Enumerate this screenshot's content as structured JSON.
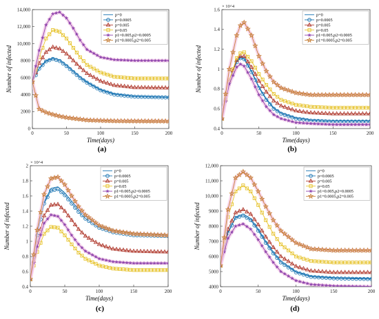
{
  "figure": {
    "colors": {
      "p0": "#1f77b4",
      "p00005": "#1f77b4",
      "p0005": "#b03a2e",
      "p005": "#e6c229",
      "combo1": "#8e44ad",
      "combo2": "#c8823b",
      "band": "#f5c6e6"
    }
  },
  "chart_data": [
    {
      "panel": "(a)",
      "type": "line",
      "xlabel": "Time(days)",
      "ylabel": "Number of infected",
      "xlim": [
        0,
        200
      ],
      "ylim": [
        0,
        14000
      ],
      "xticks": [
        0,
        50,
        100,
        150,
        200
      ],
      "yticks": [
        0,
        2000,
        4000,
        6000,
        8000,
        10000,
        12000,
        14000
      ],
      "ytick_labels": [
        "0",
        "2000",
        "4000",
        "6000",
        "8000",
        "10,000",
        "12,000",
        "14,000"
      ],
      "exponent": "",
      "legend_position": "top-right",
      "x": [
        0,
        10,
        20,
        30,
        40,
        50,
        60,
        70,
        80,
        100,
        120,
        150,
        200
      ],
      "series": [
        {
          "name": "p=0",
          "marker": "none",
          "color": "p0",
          "values": [
            5500,
            7100,
            8000,
            8300,
            8100,
            7500,
            6800,
            6100,
            5500,
            4600,
            4100,
            3800,
            3700
          ]
        },
        {
          "name": "p=0.0005",
          "marker": "circle",
          "color": "p00005",
          "values": [
            5500,
            7050,
            7900,
            8200,
            7950,
            7350,
            6650,
            5950,
            5400,
            4500,
            4000,
            3750,
            3650
          ]
        },
        {
          "name": "p=0.005",
          "marker": "triangle",
          "color": "p0005",
          "values": [
            5500,
            7700,
            9000,
            9600,
            9400,
            8800,
            8000,
            7200,
            6500,
            5600,
            5100,
            4850,
            4800
          ]
        },
        {
          "name": "p=0.05",
          "marker": "square",
          "color": "p005",
          "values": [
            5500,
            8400,
            10600,
            11600,
            11400,
            10600,
            9500,
            8400,
            7500,
            6600,
            6100,
            5900,
            5900
          ]
        },
        {
          "name": "p1=0.005,p2=0.0005",
          "marker": "star",
          "color": "combo1",
          "values": [
            5500,
            9200,
            12200,
            13500,
            13700,
            13000,
            11800,
            10400,
            9300,
            8400,
            8100,
            8000,
            8000
          ]
        },
        {
          "name": "p1=0.0005,p2=0.005",
          "marker": "hexstar",
          "color": "combo2",
          "values": [
            5500,
            2300,
            1900,
            1650,
            1450,
            1300,
            1200,
            1100,
            1000,
            950,
            900,
            880,
            870
          ]
        }
      ]
    },
    {
      "panel": "(b)",
      "type": "line",
      "xlabel": "Time(days)",
      "ylabel": "Number of infected",
      "xlim": [
        0,
        200
      ],
      "ylim": [
        0.4,
        1.6
      ],
      "xticks": [
        0,
        50,
        100,
        150,
        200
      ],
      "yticks": [
        0.4,
        0.6,
        0.8,
        1.0,
        1.2,
        1.4,
        1.6
      ],
      "ytick_labels": [
        "0.4",
        "0.6",
        "0.8",
        "1",
        "1.2",
        "1.4",
        "1.6"
      ],
      "exponent": "× 10^4",
      "legend_position": "top-right",
      "x": [
        0,
        10,
        20,
        25,
        30,
        40,
        50,
        60,
        70,
        80,
        100,
        120,
        150,
        200
      ],
      "series": [
        {
          "name": "p=0",
          "marker": "none",
          "color": "p0",
          "values": [
            0.5,
            0.88,
            1.08,
            1.12,
            1.11,
            0.98,
            0.82,
            0.7,
            0.61,
            0.56,
            0.51,
            0.49,
            0.48,
            0.48
          ]
        },
        {
          "name": "p=0.0005",
          "marker": "circle",
          "color": "p00005",
          "values": [
            0.5,
            0.87,
            1.07,
            1.11,
            1.1,
            0.97,
            0.81,
            0.69,
            0.6,
            0.55,
            0.5,
            0.48,
            0.47,
            0.47
          ]
        },
        {
          "name": "p=0.005",
          "marker": "triangle",
          "color": "p0005",
          "values": [
            0.5,
            0.88,
            1.09,
            1.13,
            1.13,
            1.02,
            0.88,
            0.77,
            0.68,
            0.63,
            0.58,
            0.56,
            0.55,
            0.55
          ]
        },
        {
          "name": "p=0.05",
          "marker": "square",
          "color": "p005",
          "values": [
            0.5,
            0.89,
            1.11,
            1.16,
            1.17,
            1.08,
            0.95,
            0.84,
            0.75,
            0.69,
            0.64,
            0.62,
            0.61,
            0.61
          ]
        },
        {
          "name": "p1=0.005,p2=0.0005",
          "marker": "star",
          "color": "combo1",
          "values": [
            0.5,
            0.85,
            1.02,
            1.05,
            1.03,
            0.9,
            0.74,
            0.62,
            0.54,
            0.5,
            0.46,
            0.45,
            0.44,
            0.44
          ]
        },
        {
          "name": "p1=0.0005,p2=0.005",
          "marker": "hexstar",
          "color": "combo2",
          "values": [
            0.5,
            1.0,
            1.34,
            1.44,
            1.47,
            1.34,
            1.13,
            0.98,
            0.87,
            0.81,
            0.76,
            0.74,
            0.74,
            0.74
          ]
        }
      ]
    },
    {
      "panel": "(c)",
      "type": "line",
      "xlabel": "Time(days)",
      "ylabel": "Number of infected",
      "xlim": [
        0,
        200
      ],
      "ylim": [
        0.4,
        2.0
      ],
      "xticks": [
        0,
        50,
        100,
        150,
        200
      ],
      "yticks": [
        0.4,
        0.6,
        0.8,
        1.0,
        1.2,
        1.4,
        1.6,
        1.8,
        2.0
      ],
      "ytick_labels": [
        "0.4",
        "0.6",
        "0.8",
        "1",
        "1.2",
        "1.4",
        "1.6",
        "1.8",
        "2"
      ],
      "exponent": "× 10^4",
      "legend_position": "top-right",
      "x": [
        0,
        10,
        20,
        30,
        40,
        50,
        60,
        70,
        80,
        100,
        120,
        150,
        200
      ],
      "series": [
        {
          "name": "p=0",
          "marker": "none",
          "color": "p0",
          "values": [
            0.5,
            1.1,
            1.52,
            1.7,
            1.72,
            1.64,
            1.53,
            1.42,
            1.33,
            1.21,
            1.15,
            1.11,
            1.09
          ]
        },
        {
          "name": "p=0.0005",
          "marker": "circle",
          "color": "p00005",
          "values": [
            0.5,
            1.08,
            1.5,
            1.67,
            1.69,
            1.61,
            1.5,
            1.39,
            1.3,
            1.18,
            1.12,
            1.08,
            1.07
          ]
        },
        {
          "name": "p=0.005",
          "marker": "triangle",
          "color": "p0005",
          "values": [
            0.5,
            0.98,
            1.34,
            1.48,
            1.49,
            1.4,
            1.28,
            1.16,
            1.07,
            0.96,
            0.9,
            0.87,
            0.86
          ]
        },
        {
          "name": "p=0.05",
          "marker": "square",
          "color": "p005",
          "values": [
            0.5,
            0.86,
            1.1,
            1.19,
            1.18,
            1.08,
            0.96,
            0.85,
            0.77,
            0.68,
            0.64,
            0.62,
            0.62
          ]
        },
        {
          "name": "p1=0.005,p2=0.0005",
          "marker": "star",
          "color": "combo1",
          "values": [
            0.5,
            0.93,
            1.24,
            1.35,
            1.33,
            1.22,
            1.08,
            0.96,
            0.87,
            0.77,
            0.73,
            0.71,
            0.71
          ]
        },
        {
          "name": "p1=0.0005,p2=0.005",
          "marker": "hexstar",
          "color": "combo2",
          "values": [
            0.5,
            1.15,
            1.62,
            1.83,
            1.85,
            1.75,
            1.6,
            1.46,
            1.35,
            1.21,
            1.14,
            1.1,
            1.08
          ]
        }
      ]
    },
    {
      "panel": "(d)",
      "type": "line",
      "xlabel": "Time(days)",
      "ylabel": "Number of infected",
      "xlim": [
        0,
        200
      ],
      "ylim": [
        4000,
        12000
      ],
      "xticks": [
        0,
        50,
        100,
        150,
        200
      ],
      "yticks": [
        4000,
        5000,
        6000,
        7000,
        8000,
        9000,
        10000,
        11000,
        12000
      ],
      "ytick_labels": [
        "4000",
        "5000",
        "6000",
        "7000",
        "8000",
        "9000",
        "10,000",
        "11,000",
        "12,000"
      ],
      "exponent": "",
      "legend_position": "top-right",
      "x": [
        0,
        10,
        20,
        30,
        40,
        50,
        60,
        70,
        80,
        100,
        120,
        150,
        200
      ],
      "series": [
        {
          "name": "p=0",
          "marker": "none",
          "color": "p0",
          "values": [
            5400,
            7600,
            8600,
            8800,
            8500,
            7800,
            7000,
            6300,
            5700,
            5000,
            4700,
            4600,
            4550
          ]
        },
        {
          "name": "p=0.0005",
          "marker": "circle",
          "color": "p00005",
          "values": [
            5400,
            7550,
            8550,
            8700,
            8400,
            7700,
            6900,
            6200,
            5600,
            4950,
            4650,
            4550,
            4500
          ]
        },
        {
          "name": "p=0.005",
          "marker": "triangle",
          "color": "p0005",
          "values": [
            5400,
            7800,
            8900,
            9100,
            8800,
            8100,
            7300,
            6600,
            6000,
            5350,
            5050,
            4950,
            4950
          ]
        },
        {
          "name": "p=0.05",
          "marker": "square",
          "color": "p005",
          "values": [
            5400,
            8600,
            10300,
            10700,
            10300,
            9400,
            8400,
            7500,
            6800,
            6000,
            5700,
            5600,
            5600
          ]
        },
        {
          "name": "p1=0.005,p2=0.0005",
          "marker": "star",
          "color": "combo1",
          "values": [
            5400,
            7200,
            8000,
            8150,
            7800,
            7100,
            6300,
            5600,
            5000,
            4400,
            4150,
            4050,
            4000
          ]
        },
        {
          "name": "p1=0.0005,p2=0.005",
          "marker": "hexstar",
          "color": "combo2",
          "values": [
            5400,
            9100,
            11200,
            11600,
            11200,
            10300,
            9300,
            8400,
            7700,
            6900,
            6500,
            6400,
            6400
          ]
        }
      ]
    }
  ]
}
